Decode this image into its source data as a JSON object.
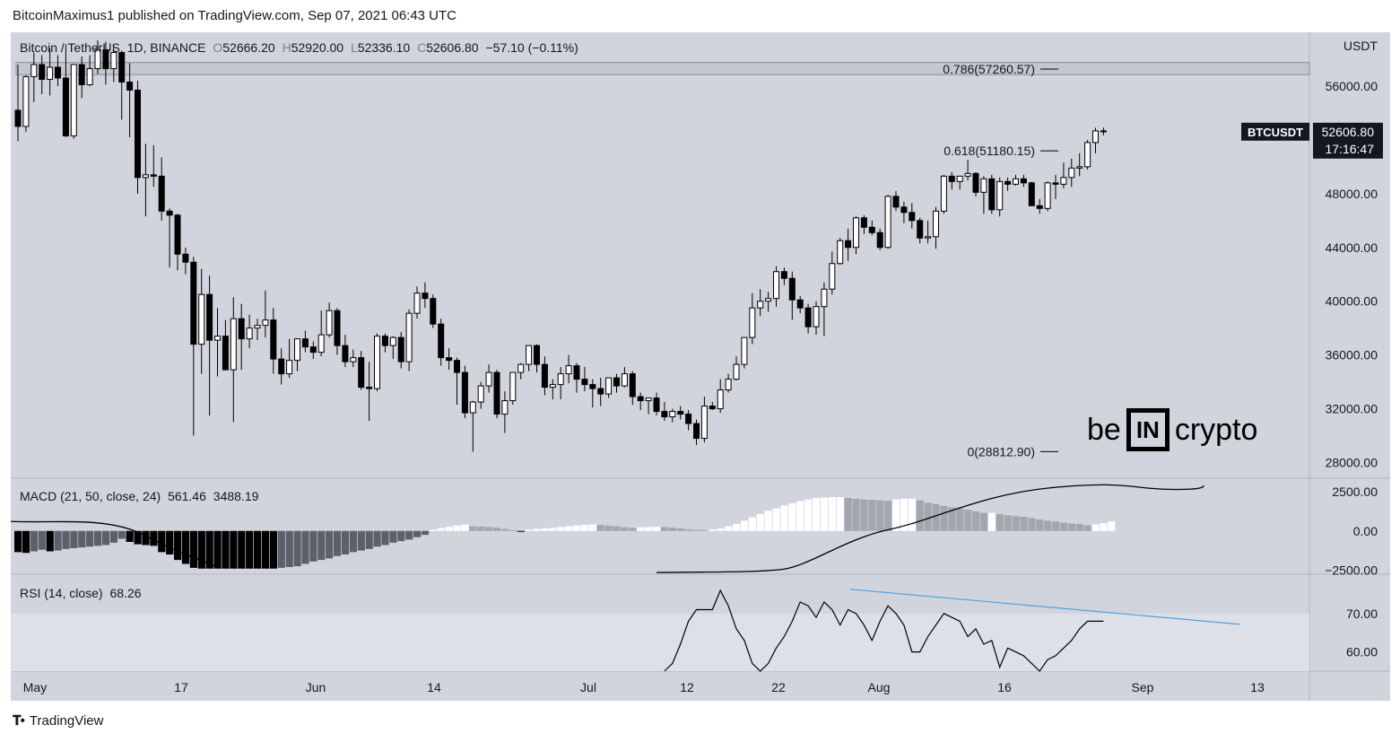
{
  "header": {
    "publisher_line": "BitcoinMaximus1 published on TradingView.com, Sep 07, 2021 06:43 UTC"
  },
  "symbol_legend": {
    "symbol": "Bitcoin / TetherUS, 1D, BINANCE",
    "open": "52666.20",
    "high": "52920.00",
    "low": "52336.10",
    "close": "52606.80",
    "change": "−57.10 (−0.11%)"
  },
  "macd_legend": {
    "label": "MACD (21, 50, close, 24)",
    "v1": "561.46",
    "v2": "3488.19"
  },
  "rsi_legend": {
    "label": "RSI (14, close)",
    "value": "68.26"
  },
  "price_tag": {
    "symbol": "BTCUSDT",
    "price": "52606.80",
    "countdown": "17:16:47"
  },
  "currency_label": "USDT",
  "footer": {
    "brand": "TradingView"
  },
  "watermark": {
    "left": "be",
    "box": "IN",
    "right": "crypto"
  },
  "colors": {
    "bg": "#d1d4dc",
    "up": "#ffffff",
    "down": "#000000",
    "trendline": "#4ba3e3",
    "rsi_band": "#dde0e7"
  },
  "chart_data": {
    "type": "candlestick",
    "title": "Bitcoin / TetherUS, 1D, BINANCE",
    "x_ticks": [
      "May",
      "17",
      "Jun",
      "14",
      "Jul",
      "12",
      "22",
      "Aug",
      "16",
      "Sep",
      "13"
    ],
    "y_ticks": [
      "56000.00",
      "48000.00",
      "44000.00",
      "40000.00",
      "36000.00",
      "32000.00",
      "28000.00"
    ],
    "ylim": [
      26900,
      60000
    ],
    "fib_levels": [
      {
        "label": "0.786(57260.57)",
        "price": 57260.57
      },
      {
        "label": "0.618(51180.15)",
        "price": 51180.15
      },
      {
        "label": "0(28812.90)",
        "price": 28812.9
      }
    ],
    "resistance_zone": [
      56850,
      57750
    ],
    "candles_ohlc": [
      [
        54200,
        57600,
        51900,
        53000
      ],
      [
        53000,
        56800,
        52600,
        56700
      ],
      [
        56700,
        58500,
        54800,
        57600
      ],
      [
        57600,
        58300,
        55400,
        56500
      ],
      [
        56500,
        58800,
        55300,
        57400
      ],
      [
        57400,
        58300,
        56000,
        56600
      ],
      [
        56600,
        59100,
        52200,
        52300
      ],
      [
        52300,
        57200,
        52100,
        57600
      ],
      [
        57600,
        58200,
        55100,
        56100
      ],
      [
        56100,
        58300,
        56000,
        57300
      ],
      [
        57300,
        59400,
        56900,
        58700
      ],
      [
        58700,
        59300,
        56100,
        57300
      ],
      [
        57300,
        59000,
        56300,
        58500
      ],
      [
        58500,
        58500,
        53500,
        56300
      ],
      [
        56300,
        57700,
        52200,
        55700
      ],
      [
        55700,
        56400,
        48000,
        49200
      ],
      [
        49200,
        51700,
        46300,
        49400
      ],
      [
        49400,
        51600,
        48500,
        49300
      ],
      [
        49300,
        50700,
        46000,
        46700
      ],
      [
        46700,
        46900,
        42500,
        46400
      ],
      [
        46400,
        46500,
        42300,
        43500
      ],
      [
        43500,
        44000,
        42000,
        42900
      ],
      [
        42900,
        43300,
        30000,
        36800
      ],
      [
        36800,
        42400,
        34600,
        40500
      ],
      [
        40500,
        41900,
        31500,
        37100
      ],
      [
        37100,
        39500,
        34400,
        37400
      ],
      [
        37400,
        38600,
        34900,
        34900
      ],
      [
        34900,
        40300,
        31000,
        38700
      ],
      [
        38700,
        39800,
        34900,
        37200
      ],
      [
        37200,
        39000,
        36500,
        38000
      ],
      [
        38000,
        38700,
        37100,
        38200
      ],
      [
        38200,
        40800,
        37300,
        38600
      ],
      [
        38600,
        39500,
        34600,
        35700
      ],
      [
        35700,
        36500,
        33800,
        34600
      ],
      [
        34600,
        37200,
        34300,
        35600
      ],
      [
        35600,
        37200,
        34800,
        37200
      ],
      [
        37200,
        37800,
        36200,
        36600
      ],
      [
        36600,
        37000,
        35700,
        36200
      ],
      [
        36200,
        39300,
        35900,
        37500
      ],
      [
        37500,
        39900,
        37300,
        39300
      ],
      [
        39300,
        39500,
        36000,
        36700
      ],
      [
        36700,
        37500,
        35100,
        35500
      ],
      [
        35500,
        36400,
        35100,
        35800
      ],
      [
        35800,
        36300,
        33400,
        33600
      ],
      [
        33600,
        35500,
        31100,
        33500
      ],
      [
        33500,
        37600,
        33300,
        37400
      ],
      [
        37400,
        37600,
        36200,
        36700
      ],
      [
        36700,
        37400,
        35700,
        37300
      ],
      [
        37300,
        37700,
        35000,
        35500
      ],
      [
        35500,
        39400,
        34800,
        39100
      ],
      [
        39100,
        41100,
        38700,
        40600
      ],
      [
        40600,
        41400,
        39500,
        40200
      ],
      [
        40200,
        40500,
        38000,
        38300
      ],
      [
        38300,
        38700,
        35200,
        35800
      ],
      [
        35800,
        36500,
        34900,
        35600
      ],
      [
        35600,
        35800,
        32300,
        34700
      ],
      [
        34700,
        35200,
        31300,
        31700
      ],
      [
        31700,
        32600,
        28800,
        32500
      ],
      [
        32500,
        34000,
        32000,
        33700
      ],
      [
        33700,
        35300,
        33200,
        34700
      ],
      [
        34700,
        34900,
        31300,
        31600
      ],
      [
        31600,
        33300,
        30200,
        32600
      ],
      [
        32600,
        34700,
        32300,
        34700
      ],
      [
        34700,
        35400,
        34200,
        35300
      ],
      [
        35300,
        36600,
        34800,
        36700
      ],
      [
        36700,
        36800,
        34700,
        35300
      ],
      [
        35300,
        35900,
        33000,
        33600
      ],
      [
        33600,
        34200,
        32700,
        33800
      ],
      [
        33800,
        35100,
        32700,
        34600
      ],
      [
        34600,
        36000,
        33900,
        35200
      ],
      [
        35200,
        35400,
        33200,
        34200
      ],
      [
        34200,
        35100,
        33300,
        33800
      ],
      [
        33800,
        34200,
        32100,
        33500
      ],
      [
        33500,
        34300,
        32200,
        33100
      ],
      [
        33100,
        34300,
        32800,
        34300
      ],
      [
        34300,
        34600,
        33200,
        33700
      ],
      [
        33700,
        35100,
        33600,
        34600
      ],
      [
        34600,
        34800,
        32300,
        32900
      ],
      [
        32900,
        33200,
        31900,
        32600
      ],
      [
        32600,
        32800,
        31600,
        32800
      ],
      [
        32800,
        33200,
        31500,
        31800
      ],
      [
        31800,
        32500,
        31100,
        31400
      ],
      [
        31400,
        32000,
        31000,
        31800
      ],
      [
        31800,
        32200,
        31200,
        31600
      ],
      [
        31600,
        31900,
        30400,
        30900
      ],
      [
        30900,
        31200,
        29300,
        29800
      ],
      [
        29800,
        32900,
        29500,
        32200
      ],
      [
        32200,
        32500,
        31900,
        32000
      ],
      [
        32000,
        34200,
        31700,
        33400
      ],
      [
        33400,
        34600,
        33200,
        34200
      ],
      [
        34200,
        35900,
        34100,
        35300
      ],
      [
        35300,
        37300,
        35000,
        37300
      ],
      [
        37300,
        40600,
        36800,
        39500
      ],
      [
        39500,
        40900,
        38900,
        40000
      ],
      [
        40000,
        40700,
        39200,
        40200
      ],
      [
        40200,
        42600,
        39600,
        42200
      ],
      [
        42200,
        42500,
        41200,
        41700
      ],
      [
        41700,
        42200,
        38600,
        40100
      ],
      [
        40100,
        40400,
        39100,
        39500
      ],
      [
        39500,
        39800,
        37600,
        38100
      ],
      [
        38100,
        40000,
        37500,
        39600
      ],
      [
        39600,
        41400,
        37400,
        40900
      ],
      [
        40900,
        43700,
        40500,
        42800
      ],
      [
        42800,
        44700,
        42700,
        44500
      ],
      [
        44500,
        45400,
        43000,
        44000
      ],
      [
        44000,
        46300,
        43500,
        46200
      ],
      [
        46200,
        46400,
        45000,
        45500
      ],
      [
        45500,
        46000,
        44900,
        45100
      ],
      [
        45100,
        45400,
        43800,
        44000
      ],
      [
        44000,
        47900,
        43900,
        47800
      ],
      [
        47800,
        48200,
        46700,
        47000
      ],
      [
        47000,
        47400,
        45800,
        46600
      ],
      [
        46600,
        47300,
        45400,
        46000
      ],
      [
        46000,
        46200,
        44300,
        44700
      ],
      [
        44700,
        46000,
        44300,
        44800
      ],
      [
        44800,
        47000,
        43900,
        46700
      ],
      [
        46700,
        49400,
        46500,
        49300
      ],
      [
        49300,
        49600,
        48300,
        48900
      ],
      [
        48900,
        49300,
        48300,
        49300
      ],
      [
        49300,
        50500,
        49000,
        49500
      ],
      [
        49500,
        49600,
        47800,
        48100
      ],
      [
        48100,
        49300,
        46500,
        49100
      ],
      [
        49100,
        49400,
        46500,
        46800
      ],
      [
        46800,
        49200,
        46300,
        48900
      ],
      [
        48900,
        49200,
        48200,
        48700
      ],
      [
        48700,
        49400,
        48600,
        49100
      ],
      [
        49100,
        49400,
        48500,
        48800
      ],
      [
        48800,
        48900,
        47200,
        47100
      ],
      [
        47100,
        47600,
        46500,
        46900
      ],
      [
        46900,
        48900,
        46700,
        48800
      ],
      [
        48800,
        49400,
        47600,
        48700
      ],
      [
        48700,
        50300,
        48400,
        49200
      ],
      [
        49200,
        50600,
        48500,
        49900
      ],
      [
        49900,
        51000,
        49300,
        50000
      ],
      [
        50000,
        52000,
        49800,
        51800
      ],
      [
        51800,
        52900,
        51000,
        52666
      ],
      [
        52666,
        52920,
        52336,
        52607
      ]
    ],
    "macd": {
      "label": "MACD (21, 50, close, 24)",
      "ylim": [
        -2700,
        3300
      ],
      "y_ticks": [
        "2500.00",
        "0.00",
        "−2500.00"
      ],
      "histogram": [
        -1350,
        -1400,
        -1300,
        -1200,
        -1300,
        -1250,
        -1150,
        -1100,
        -1050,
        -1000,
        -950,
        -900,
        -750,
        -500,
        -700,
        -850,
        -900,
        -950,
        -1350,
        -1500,
        -1850,
        -2100,
        -2350,
        -2400,
        -2400,
        -2400,
        -2400,
        -2400,
        -2400,
        -2400,
        -2400,
        -2400,
        -2400,
        -2350,
        -2300,
        -2250,
        -2100,
        -1950,
        -1850,
        -1750,
        -1600,
        -1500,
        -1350,
        -1250,
        -1150,
        -1000,
        -900,
        -750,
        -650,
        -550,
        -400,
        -250,
        80,
        180,
        260,
        350,
        400,
        300,
        280,
        250,
        210,
        130,
        50,
        -50,
        80,
        130,
        160,
        190,
        250,
        310,
        350,
        390,
        410,
        380,
        340,
        300,
        230,
        190,
        230,
        250,
        260,
        250,
        210,
        160,
        110,
        70,
        50,
        100,
        160,
        290,
        450,
        650,
        870,
        1080,
        1280,
        1440,
        1620,
        1760,
        1900,
        2000,
        2100,
        2120,
        2150,
        2150,
        2100,
        2050,
        2000,
        1980,
        1950,
        1920,
        2000,
        2050,
        2050,
        1950,
        1800,
        1720,
        1600,
        1500,
        1450,
        1350,
        1250,
        1150,
        1150,
        1080,
        1000,
        950,
        900,
        820,
        730,
        650,
        600,
        530,
        470,
        440,
        360,
        420,
        500,
        600
      ],
      "macd_line_segment": "rendered for the tail of the series"
    },
    "rsi": {
      "label": "RSI (14, close)",
      "value": 68.26,
      "ylim": [
        55,
        80
      ],
      "y_ticks": [
        "70.00",
        "60.00"
      ],
      "band": [
        30,
        70
      ],
      "points_tail": [
        54,
        57,
        62,
        68,
        71,
        71,
        71,
        76,
        72,
        66,
        63,
        57,
        54,
        57,
        61,
        64,
        68,
        73,
        72,
        69,
        73,
        71,
        67,
        71,
        70,
        67,
        63,
        68,
        72,
        70,
        67,
        60,
        60,
        64,
        67,
        70,
        69,
        68,
        64,
        66,
        62,
        63,
        56,
        61,
        60,
        59,
        57,
        55,
        58,
        59,
        61,
        63,
        66,
        68,
        68,
        68
      ]
    }
  }
}
